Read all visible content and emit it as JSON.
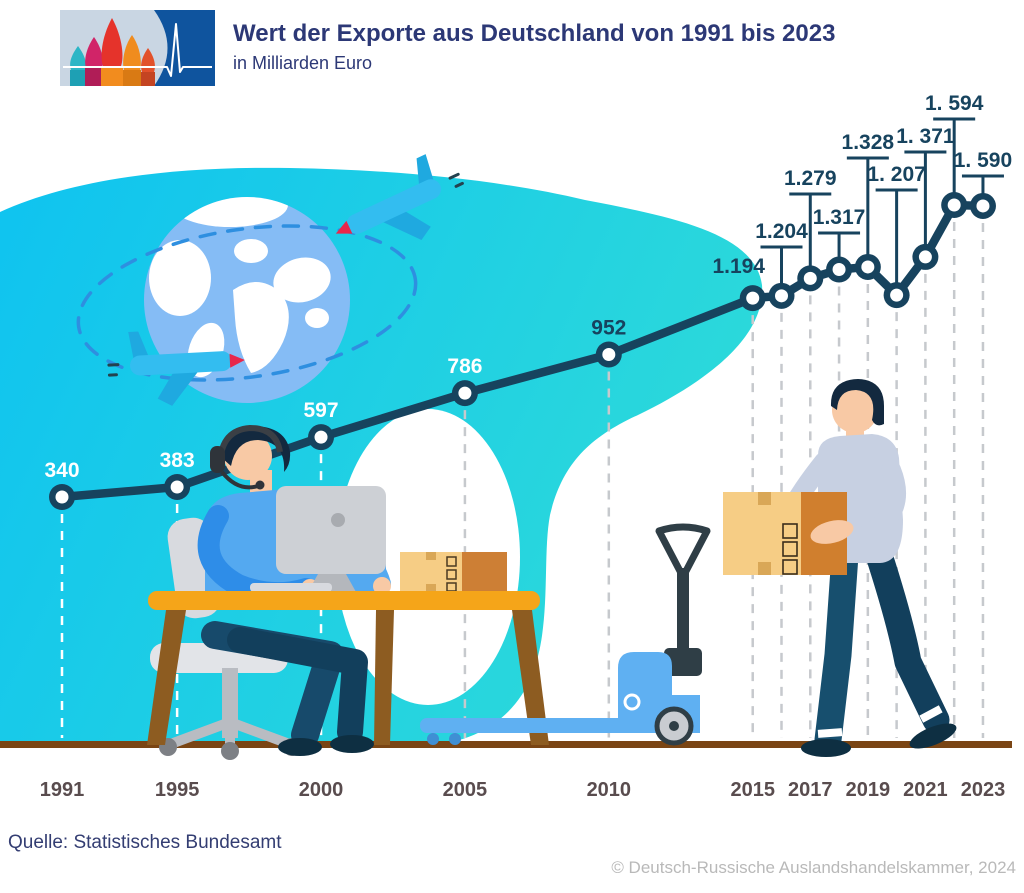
{
  "header": {
    "title": "Wert der Exporte aus Deutschland von 1991 bis 2023",
    "subtitle": "in Milliarden Euro"
  },
  "chart_data": {
    "type": "line",
    "title": "Wert der Exporte aus Deutschland von 1991 bis 2023",
    "ylabel": "Milliarden Euro",
    "x_ticks": [
      1991,
      1995,
      2000,
      2005,
      2010,
      2015,
      2017,
      2019,
      2021,
      2023
    ],
    "points": [
      {
        "year": 1991,
        "value": 340,
        "label": "340"
      },
      {
        "year": 1995,
        "value": 383,
        "label": "383"
      },
      {
        "year": 2000,
        "value": 597,
        "label": "597"
      },
      {
        "year": 2005,
        "value": 786,
        "label": "786"
      },
      {
        "year": 2010,
        "value": 952,
        "label": "952"
      },
      {
        "year": 2015,
        "value": 1194,
        "label": "1.194"
      },
      {
        "year": 2016,
        "value": 1204,
        "label": "1.204"
      },
      {
        "year": 2017,
        "value": 1279,
        "label": "1.279"
      },
      {
        "year": 2018,
        "value": 1317,
        "label": "1.317"
      },
      {
        "year": 2019,
        "value": 1328,
        "label": "1.328"
      },
      {
        "year": 2020,
        "value": 1207,
        "label": "1. 207"
      },
      {
        "year": 2021,
        "value": 1371,
        "label": "1. 371"
      },
      {
        "year": 2022,
        "value": 1594,
        "label": "1. 594"
      },
      {
        "year": 2023,
        "value": 1590,
        "label": "1. 590"
      }
    ],
    "colors": {
      "line": "#17435e",
      "value_label_dark": "#17435e",
      "value_label_light": "#ffffff",
      "year_label": "#594c4e",
      "grid_on_teal": "#ffffff",
      "grid_on_white": "#c6c9cd",
      "blob_gradient_start": "#0fc3f0",
      "blob_gradient_end": "#2cd9da",
      "ground": "#7a4514"
    }
  },
  "footer": {
    "source": "Quelle: Statistisches Bundesamt",
    "copyright": "© Deutsch-Russische Auslandshandelskammer, 2024"
  }
}
